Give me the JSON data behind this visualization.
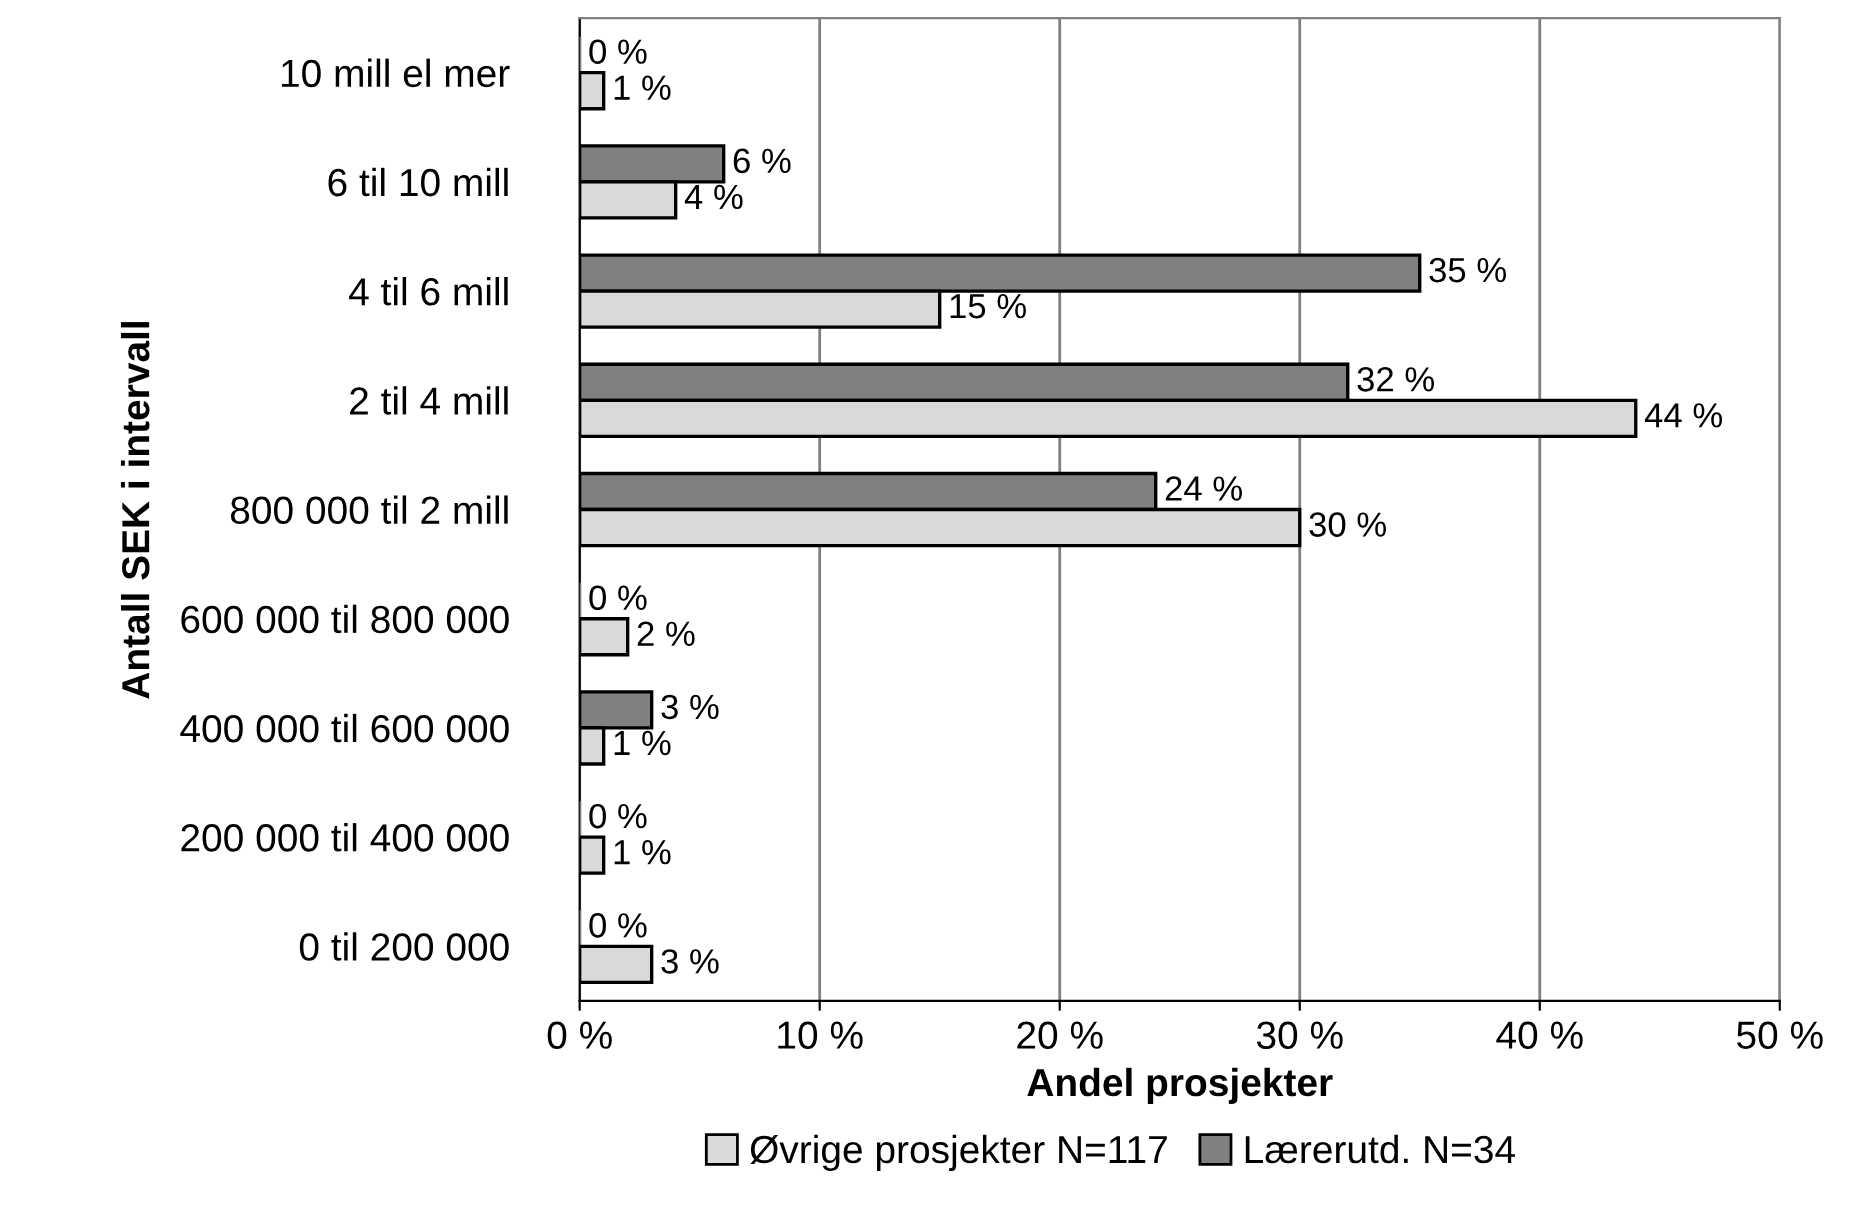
{
  "chart_data": {
    "type": "bar",
    "orientation": "horizontal",
    "xlabel": "Andel prosjekter",
    "ylabel": "Antall SEK i intervall",
    "categories": [
      "10 mill el mer",
      "6 til 10 mill",
      "4 til 6 mill",
      "2 til 4 mill",
      "800 000 til 2 mill",
      "600 000 til 800 000",
      "400 000 til 600 000",
      "200 000 til 400 000",
      "0 til 200 000"
    ],
    "series": [
      {
        "name": "Lærerutd. N=34",
        "color": "#808080",
        "values": [
          0,
          6,
          35,
          32,
          24,
          0,
          3,
          0,
          0
        ],
        "value_labels": [
          "0 %",
          "6 %",
          "35 %",
          "32 %",
          "24 %",
          "0 %",
          "3 %",
          "0 %",
          "0 %"
        ]
      },
      {
        "name": "Øvrige prosjekter N=117",
        "color": "#d9d9d9",
        "values": [
          1,
          4,
          15,
          44,
          30,
          2,
          1,
          1,
          3
        ],
        "value_labels": [
          "1 %",
          "4 %",
          "15 %",
          "44 %",
          "30 %",
          "2 %",
          "1 %",
          "1 %",
          "3 %"
        ]
      }
    ],
    "xlim": [
      0,
      50
    ],
    "xticks": [
      {
        "value": 0,
        "label": "0 %"
      },
      {
        "value": 10,
        "label": "10 %"
      },
      {
        "value": 20,
        "label": "20 %"
      },
      {
        "value": 30,
        "label": "30 %"
      },
      {
        "value": 40,
        "label": "40 %"
      },
      {
        "value": 50,
        "label": "50 %"
      }
    ],
    "grid": "x",
    "legend": "bottom"
  }
}
